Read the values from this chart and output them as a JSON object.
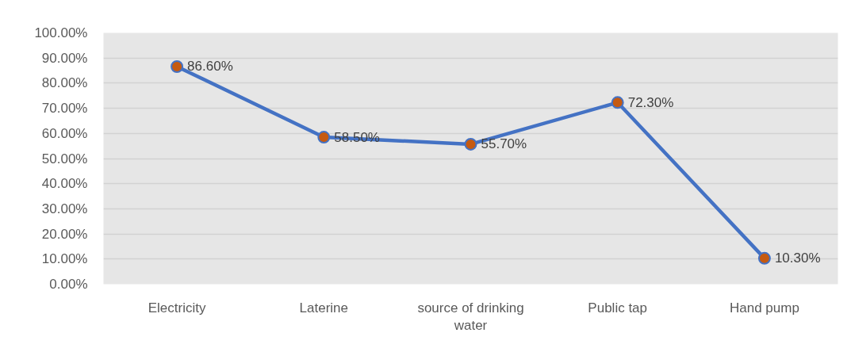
{
  "chart_data": {
    "type": "line",
    "categories": [
      "Electricity",
      "Laterine",
      "source of drinking water",
      "Public tap",
      "Hand pump"
    ],
    "series": [
      {
        "color": "#4472c4",
        "colors": [
          "#c55a11",
          "#c55a11",
          "#c55a11",
          "#c55a11",
          "#c55a11"
        ],
        "values": [
          86.6,
          58.5,
          55.7,
          72.3,
          10.3
        ],
        "value_labels": [
          "86.60%",
          "58.50%",
          "55.70%",
          "72.30%",
          "10.30%"
        ]
      }
    ],
    "ylim": [
      0,
      100
    ],
    "yticks": [
      {
        "value": 0,
        "label": "0.00%"
      },
      {
        "value": 10,
        "label": "10.00%"
      },
      {
        "value": 20,
        "label": "20.00%"
      },
      {
        "value": 30,
        "label": "30.00%"
      },
      {
        "value": 40,
        "label": "40.00%"
      },
      {
        "value": 50,
        "label": "50.00%"
      },
      {
        "value": 60,
        "label": "60.00%"
      },
      {
        "value": 70,
        "label": "70.00%"
      },
      {
        "value": 80,
        "label": "80.00%"
      },
      {
        "value": 90,
        "label": "90.00%"
      },
      {
        "value": 100,
        "label": "100.00%"
      }
    ],
    "grid": "y",
    "marker": "circle",
    "line_style": "solid"
  }
}
